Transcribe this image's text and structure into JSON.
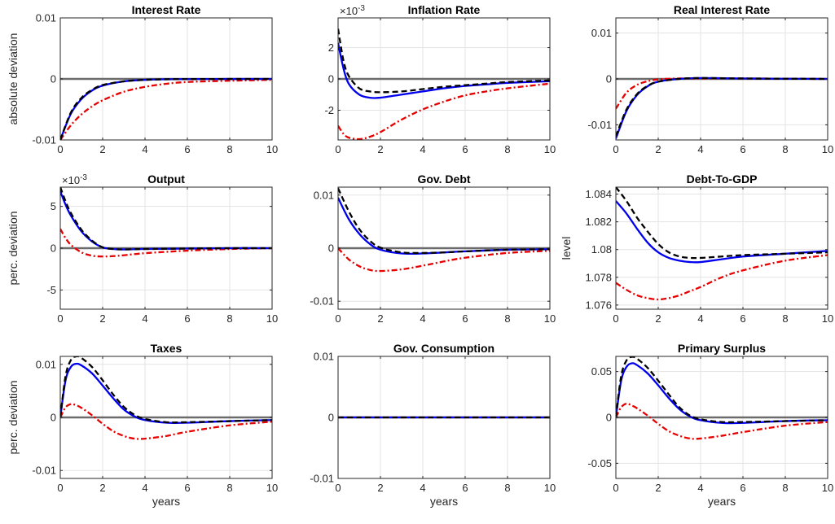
{
  "colors": {
    "blue_solid": "#0000ee",
    "black_dashed": "#000000",
    "red_dashdot": "#e60000",
    "zero_line": "#6b6b6b",
    "grid": "#e3e3e3"
  },
  "chart_data": [
    {
      "type": "line",
      "title": "Interest Rate",
      "ylabel": "absolute deviation",
      "xlabel": "",
      "xlim": [
        0,
        10
      ],
      "ylim": [
        -0.01,
        0.01
      ],
      "grid": true,
      "xticks": [
        "0",
        "2",
        "4",
        "6",
        "8",
        "10"
      ],
      "yticks": [
        {
          "v": -0.01,
          "t": "-0.01"
        },
        {
          "v": 0,
          "t": "0"
        },
        {
          "v": 0.01,
          "t": "0.01"
        }
      ],
      "exponent": "",
      "x": [
        0,
        0.5,
        1,
        1.5,
        2,
        3,
        4,
        5,
        6,
        8,
        10
      ],
      "series": [
        {
          "style": "solid",
          "values": [
            -0.01,
            -0.0057,
            -0.0033,
            -0.0019,
            -0.0011,
            -0.0004,
            -0.00015,
            -6e-05,
            -3e-05,
            -1e-05,
            0
          ]
        },
        {
          "style": "dashed",
          "values": [
            -0.01,
            -0.0055,
            -0.0031,
            -0.0018,
            -0.001,
            -0.0004,
            -0.00015,
            -6e-05,
            -3e-05,
            -1e-05,
            0
          ]
        },
        {
          "style": "dashdot",
          "values": [
            -0.01,
            -0.0076,
            -0.0058,
            -0.0045,
            -0.0035,
            -0.0021,
            -0.0013,
            -0.0008,
            -0.0005,
            -0.0003,
            -0.00015
          ]
        }
      ]
    },
    {
      "type": "line",
      "title": "Inflation Rate",
      "ylabel": "",
      "xlabel": "",
      "xlim": [
        0,
        10
      ],
      "ylim": [
        -3.9,
        3.9
      ],
      "grid": true,
      "xticks": [
        "0",
        "2",
        "4",
        "6",
        "8",
        "10"
      ],
      "yticks": [
        {
          "v": -2,
          "t": "-2"
        },
        {
          "v": 0,
          "t": "0"
        },
        {
          "v": 2,
          "t": "2"
        }
      ],
      "exponent": "×10",
      "exponent_power": "-3",
      "x": [
        0,
        0.25,
        0.5,
        1,
        1.5,
        2,
        3,
        4,
        5,
        6,
        7,
        8,
        10
      ],
      "series": [
        {
          "style": "solid",
          "values": [
            2.3,
            0.7,
            -0.3,
            -1.0,
            -1.2,
            -1.2,
            -1.0,
            -0.8,
            -0.6,
            -0.45,
            -0.35,
            -0.25,
            -0.15
          ]
        },
        {
          "style": "dashed",
          "values": [
            3.2,
            1.2,
            0.2,
            -0.6,
            -0.8,
            -0.85,
            -0.8,
            -0.65,
            -0.5,
            -0.4,
            -0.3,
            -0.2,
            -0.1
          ]
        },
        {
          "style": "dashdot",
          "values": [
            -3.0,
            -3.5,
            -3.75,
            -3.85,
            -3.7,
            -3.4,
            -2.6,
            -1.95,
            -1.45,
            -1.05,
            -0.8,
            -0.6,
            -0.3
          ]
        }
      ]
    },
    {
      "type": "line",
      "title": "Real Interest Rate",
      "ylabel": "",
      "xlabel": "",
      "xlim": [
        0,
        10
      ],
      "ylim": [
        -0.0133,
        0.0133
      ],
      "grid": true,
      "xticks": [
        "0",
        "2",
        "4",
        "6",
        "8",
        "10"
      ],
      "yticks": [
        {
          "v": -0.01,
          "t": "-0.01"
        },
        {
          "v": 0,
          "t": "0"
        },
        {
          "v": 0.01,
          "t": "0.01"
        }
      ],
      "exponent": "",
      "x": [
        0,
        0.5,
        1,
        1.5,
        2,
        3,
        4,
        6,
        10
      ],
      "series": [
        {
          "style": "solid",
          "values": [
            -0.013,
            -0.007,
            -0.0035,
            -0.0016,
            -0.0006,
            0.0,
            0.0002,
            0.0001,
            0
          ]
        },
        {
          "style": "dashed",
          "values": [
            -0.0125,
            -0.0067,
            -0.0033,
            -0.0015,
            -0.0006,
            0.0,
            0.0002,
            0.0001,
            0
          ]
        },
        {
          "style": "dashdot",
          "values": [
            -0.0065,
            -0.003,
            -0.0013,
            -0.0005,
            -0.0001,
            0.0001,
            0.0001,
            0.0001,
            0
          ]
        }
      ]
    },
    {
      "type": "line",
      "title": "Output",
      "ylabel": "perc. deviation",
      "xlabel": "",
      "xlim": [
        0,
        10
      ],
      "ylim": [
        -7.3,
        7.3
      ],
      "grid": true,
      "xticks": [
        "0",
        "2",
        "4",
        "6",
        "8",
        "10"
      ],
      "yticks": [
        {
          "v": -5,
          "t": "-5"
        },
        {
          "v": 0,
          "t": "0"
        },
        {
          "v": 5,
          "t": "5"
        }
      ],
      "exponent": "×10",
      "exponent_power": "-3",
      "x": [
        0,
        0.25,
        0.5,
        1,
        1.5,
        2,
        2.5,
        3,
        4,
        6,
        8,
        10
      ],
      "series": [
        {
          "style": "solid",
          "values": [
            6.8,
            5.2,
            3.9,
            2.0,
            0.8,
            0.1,
            -0.1,
            -0.15,
            -0.1,
            -0.05,
            0,
            0
          ]
        },
        {
          "style": "dashed",
          "values": [
            7.3,
            5.6,
            4.2,
            2.2,
            0.9,
            0.1,
            -0.1,
            -0.15,
            -0.1,
            -0.05,
            0,
            0
          ]
        },
        {
          "style": "dashdot",
          "values": [
            2.3,
            1.2,
            0.4,
            -0.5,
            -0.9,
            -1.0,
            -0.95,
            -0.85,
            -0.6,
            -0.3,
            -0.1,
            0
          ]
        }
      ]
    },
    {
      "type": "line",
      "title": "Gov. Debt",
      "ylabel": "",
      "xlabel": "",
      "xlim": [
        0,
        10
      ],
      "ylim": [
        -0.0115,
        0.0115
      ],
      "grid": true,
      "xticks": [
        "0",
        "2",
        "4",
        "6",
        "8",
        "10"
      ],
      "yticks": [
        {
          "v": -0.01,
          "t": "-0.01"
        },
        {
          "v": 0,
          "t": "0"
        },
        {
          "v": 0.01,
          "t": "0.01"
        }
      ],
      "exponent": "",
      "x": [
        0,
        0.5,
        1,
        1.5,
        2,
        3,
        4,
        5,
        6,
        8,
        10
      ],
      "series": [
        {
          "style": "solid",
          "values": [
            0.0095,
            0.0055,
            0.0027,
            0.0008,
            -0.0003,
            -0.001,
            -0.001,
            -0.0008,
            -0.0006,
            -0.0003,
            -0.0002
          ]
        },
        {
          "style": "dashed",
          "values": [
            0.0113,
            0.007,
            0.0036,
            0.0014,
            0.0001,
            -0.0008,
            -0.0009,
            -0.0008,
            -0.0006,
            -0.0003,
            -0.0002
          ]
        },
        {
          "style": "dashdot",
          "values": [
            0.0,
            -0.0021,
            -0.0034,
            -0.0041,
            -0.0043,
            -0.004,
            -0.0033,
            -0.0025,
            -0.0018,
            -0.0009,
            -0.0005
          ]
        }
      ]
    },
    {
      "type": "line",
      "title": "Debt-To-GDP",
      "ylabel": "level",
      "xlabel": "",
      "xlim": [
        0,
        10
      ],
      "ylim": [
        1.0757,
        1.0845
      ],
      "grid": true,
      "xticks": [
        "0",
        "2",
        "4",
        "6",
        "8",
        "10"
      ],
      "yticks": [
        {
          "v": 1.076,
          "t": "1.076"
        },
        {
          "v": 1.078,
          "t": "1.078"
        },
        {
          "v": 1.08,
          "t": "1.08"
        },
        {
          "v": 1.082,
          "t": "1.082"
        },
        {
          "v": 1.084,
          "t": "1.084"
        }
      ],
      "exponent": "",
      "x": [
        0,
        0.5,
        1,
        1.5,
        2,
        2.5,
        3,
        3.5,
        4,
        5,
        6,
        8,
        10
      ],
      "series": [
        {
          "style": "solid",
          "values": [
            1.0835,
            1.0826,
            1.0815,
            1.0805,
            1.0798,
            1.0794,
            1.0792,
            1.0791,
            1.0791,
            1.0793,
            1.0795,
            1.0797,
            1.0799
          ]
        },
        {
          "style": "dashed",
          "values": [
            1.0845,
            1.0835,
            1.0823,
            1.0813,
            1.0804,
            1.0798,
            1.0795,
            1.0794,
            1.0794,
            1.0795,
            1.0796,
            1.0797,
            1.0798
          ]
        },
        {
          "style": "dashdot",
          "values": [
            1.0776,
            1.0771,
            1.0767,
            1.0765,
            1.0764,
            1.0765,
            1.0767,
            1.077,
            1.0773,
            1.078,
            1.0785,
            1.0792,
            1.0796
          ]
        }
      ]
    },
    {
      "type": "line",
      "title": "Taxes",
      "ylabel": "perc. deviation",
      "xlabel": "years",
      "xlim": [
        0,
        10
      ],
      "ylim": [
        -0.0115,
        0.0115
      ],
      "grid": true,
      "xticks": [
        "0",
        "2",
        "4",
        "6",
        "8",
        "10"
      ],
      "yticks": [
        {
          "v": -0.01,
          "t": "-0.01"
        },
        {
          "v": 0,
          "t": "0"
        },
        {
          "v": 0.01,
          "t": "0.01"
        }
      ],
      "exponent": "",
      "x": [
        0,
        0.25,
        0.5,
        0.75,
        1,
        1.5,
        2,
        2.5,
        3,
        3.5,
        4,
        5,
        6,
        8,
        10
      ],
      "series": [
        {
          "style": "solid",
          "values": [
            0,
            0.007,
            0.0095,
            0.0101,
            0.0098,
            0.0083,
            0.006,
            0.0036,
            0.0015,
            0.0002,
            -0.0005,
            -0.001,
            -0.001,
            -0.0007,
            -0.0005
          ]
        },
        {
          "style": "dashed",
          "values": [
            0,
            0.0078,
            0.0108,
            0.0115,
            0.0112,
            0.0095,
            0.007,
            0.0043,
            0.002,
            0.0005,
            -0.0003,
            -0.0009,
            -0.0009,
            -0.0007,
            -0.0005
          ]
        },
        {
          "style": "dashdot",
          "values": [
            0,
            0.0019,
            0.0025,
            0.0023,
            0.0018,
            0.0004,
            -0.0012,
            -0.0026,
            -0.0035,
            -0.004,
            -0.004,
            -0.0035,
            -0.0027,
            -0.0015,
            -0.0008
          ]
        }
      ]
    },
    {
      "type": "line",
      "title": "Gov. Consumption",
      "ylabel": "",
      "xlabel": "years",
      "xlim": [
        0,
        10
      ],
      "ylim": [
        -0.01,
        0.01
      ],
      "grid": true,
      "xticks": [
        "0",
        "2",
        "4",
        "6",
        "8",
        "10"
      ],
      "yticks": [
        {
          "v": -0.01,
          "t": "-0.01"
        },
        {
          "v": 0,
          "t": "0"
        },
        {
          "v": 0.01,
          "t": "0.01"
        }
      ],
      "exponent": "",
      "x": [
        0,
        10
      ],
      "series": [
        {
          "style": "solid",
          "values": [
            0,
            0
          ]
        },
        {
          "style": "dashed",
          "values": [
            0,
            0
          ]
        },
        {
          "style": "dashdot",
          "values": [
            0,
            0
          ]
        }
      ]
    },
    {
      "type": "line",
      "title": "Primary Surplus",
      "ylabel": "",
      "xlabel": "years",
      "xlim": [
        0,
        10
      ],
      "ylim": [
        -0.0665,
        0.0665
      ],
      "grid": true,
      "xticks": [
        "0",
        "2",
        "4",
        "6",
        "8",
        "10"
      ],
      "yticks": [
        {
          "v": -0.05,
          "t": "-0.05"
        },
        {
          "v": 0,
          "t": "0"
        },
        {
          "v": 0.05,
          "t": "0.05"
        }
      ],
      "exponent": "",
      "x": [
        0,
        0.25,
        0.5,
        0.75,
        1,
        1.5,
        2,
        2.5,
        3,
        3.5,
        4,
        5,
        6,
        8,
        10
      ],
      "series": [
        {
          "style": "solid",
          "values": [
            0,
            0.04,
            0.055,
            0.059,
            0.057,
            0.048,
            0.035,
            0.021,
            0.009,
            0.001,
            -0.003,
            -0.006,
            -0.006,
            -0.004,
            -0.003
          ]
        },
        {
          "style": "dashed",
          "values": [
            0,
            0.045,
            0.062,
            0.066,
            0.064,
            0.054,
            0.04,
            0.025,
            0.011,
            0.002,
            -0.002,
            -0.005,
            -0.005,
            -0.004,
            -0.003
          ]
        },
        {
          "style": "dashdot",
          "values": [
            0,
            0.011,
            0.015,
            0.013,
            0.01,
            0.002,
            -0.007,
            -0.015,
            -0.02,
            -0.023,
            -0.023,
            -0.02,
            -0.016,
            -0.009,
            -0.005
          ]
        }
      ]
    }
  ]
}
